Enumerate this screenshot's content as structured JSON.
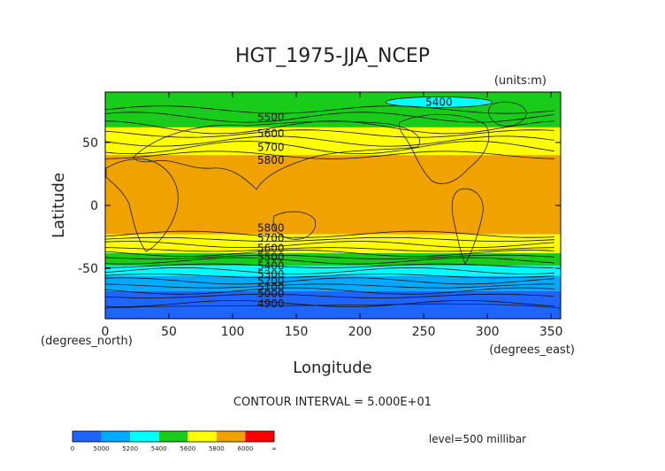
{
  "chart_data": {
    "type": "contour",
    "title": "HGT_1975-JJA_NCEP",
    "units_note": "(units:m)",
    "xlabel": "Longitude",
    "ylabel": "Latitude",
    "x_unit_label": "(degrees_east)",
    "y_unit_label": "(degrees_north)",
    "xlim": [
      0,
      357.5
    ],
    "ylim": [
      -90,
      90
    ],
    "x_ticks": [
      0,
      50,
      100,
      150,
      200,
      250,
      300,
      350
    ],
    "y_ticks": [
      -50,
      0,
      50
    ],
    "contour_interval_text": "CONTOUR INTERVAL = 5.000E+01",
    "level_text": "level=500 millibar",
    "shading_bands": [
      {
        "lower": 5800,
        "upper": 6000,
        "lat_ranges": [
          [
            -23,
            40
          ]
        ],
        "color": "#f0a300"
      },
      {
        "lower": 5600,
        "upper": 5800,
        "lat_ranges": [
          [
            40,
            62
          ],
          [
            -38,
            -23
          ]
        ],
        "color": "#ffff00"
      },
      {
        "lower": 5400,
        "upper": 5600,
        "lat_ranges": [
          [
            62,
            90
          ],
          [
            -48,
            -38
          ]
        ],
        "color": "#19cc19"
      },
      {
        "lower": 5200,
        "upper": 5400,
        "lat_ranges": [
          [
            -56,
            -48
          ]
        ],
        "color": "#00ffff"
      },
      {
        "lower": 5000,
        "upper": 5200,
        "lat_ranges": [
          [
            -68,
            -56
          ]
        ],
        "color": "#00aaff"
      },
      {
        "lower": 0,
        "upper": 5000,
        "lat_ranges": [
          [
            -90,
            -68
          ]
        ],
        "color": "#1e64ff"
      }
    ],
    "contour_labels": [
      {
        "text": "5400",
        "lon": 262,
        "lat": 82
      },
      {
        "text": "5500",
        "lon": 130,
        "lat": 70
      },
      {
        "text": "5600",
        "lon": 130,
        "lat": 57
      },
      {
        "text": "5700",
        "lon": 130,
        "lat": 46
      },
      {
        "text": "5800",
        "lon": 130,
        "lat": 36
      },
      {
        "text": "5800",
        "lon": 130,
        "lat": -18
      },
      {
        "text": "5700",
        "lon": 130,
        "lat": -26
      },
      {
        "text": "5600",
        "lon": 130,
        "lat": -34
      },
      {
        "text": "5500",
        "lon": 130,
        "lat": -41
      },
      {
        "text": "5400",
        "lon": 130,
        "lat": -48
      },
      {
        "text": "5300",
        "lon": 130,
        "lat": -55
      },
      {
        "text": "5200",
        "lon": 130,
        "lat": -60
      },
      {
        "text": "5100",
        "lon": 130,
        "lat": -65
      },
      {
        "text": "5000",
        "lon": 130,
        "lat": -70
      },
      {
        "text": "4900",
        "lon": 130,
        "lat": -78
      }
    ],
    "colorbar": {
      "colors": [
        "#1e64ff",
        "#00aaff",
        "#00ffff",
        "#19cc19",
        "#ffff00",
        "#f0a300",
        "#ff0000"
      ],
      "tick_labels": [
        "0",
        "5000",
        "5200",
        "5400",
        "5600",
        "5800",
        "6000",
        "∞"
      ]
    }
  }
}
